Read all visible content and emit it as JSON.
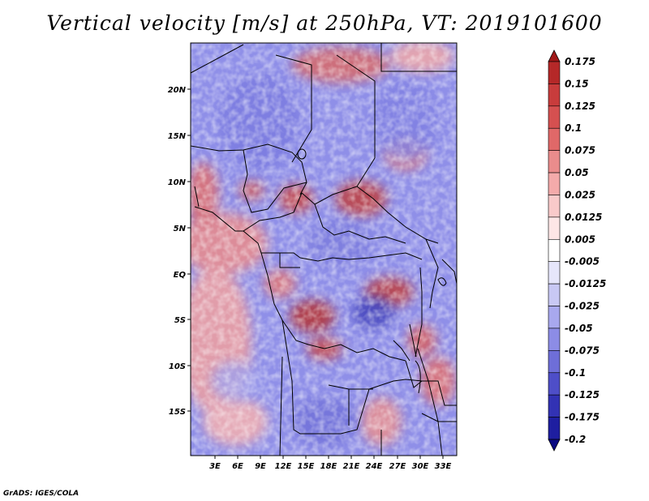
{
  "title": "Vertical velocity [m/s] at 250hPa, VT: 2019101600",
  "credit": "GrADS: IGES/COLA",
  "map": {
    "variable": "Vertical velocity",
    "units": "m/s",
    "level": "250hPa",
    "valid_time": "2019101600",
    "lon_labels": [
      "3E",
      "6E",
      "9E",
      "12E",
      "15E",
      "18E",
      "21E",
      "24E",
      "27E",
      "30E",
      "33E"
    ],
    "lat_labels": [
      "20N",
      "15N",
      "10N",
      "5N",
      "EQ",
      "5S",
      "10S",
      "15S"
    ]
  },
  "colorbar": {
    "labels": [
      "0.175",
      "0.15",
      "0.125",
      "0.1",
      "0.075",
      "0.05",
      "0.025",
      "0.0125",
      "0.005",
      "-0.005",
      "-0.0125",
      "-0.025",
      "-0.05",
      "-0.075",
      "-0.1",
      "-0.125",
      "-0.175",
      "-0.2"
    ],
    "colors": [
      "#a01818",
      "#b52828",
      "#c83c3c",
      "#d55050",
      "#e06868",
      "#ea8c8c",
      "#f4aaaa",
      "#f9caca",
      "#fde6e6",
      "#ffffff",
      "#e6e6fb",
      "#c8c8f4",
      "#a8a8ee",
      "#8c8ce6",
      "#6e6ed8",
      "#4e4ec8",
      "#3232b4",
      "#1e1ea0",
      "#0a0a82"
    ]
  }
}
